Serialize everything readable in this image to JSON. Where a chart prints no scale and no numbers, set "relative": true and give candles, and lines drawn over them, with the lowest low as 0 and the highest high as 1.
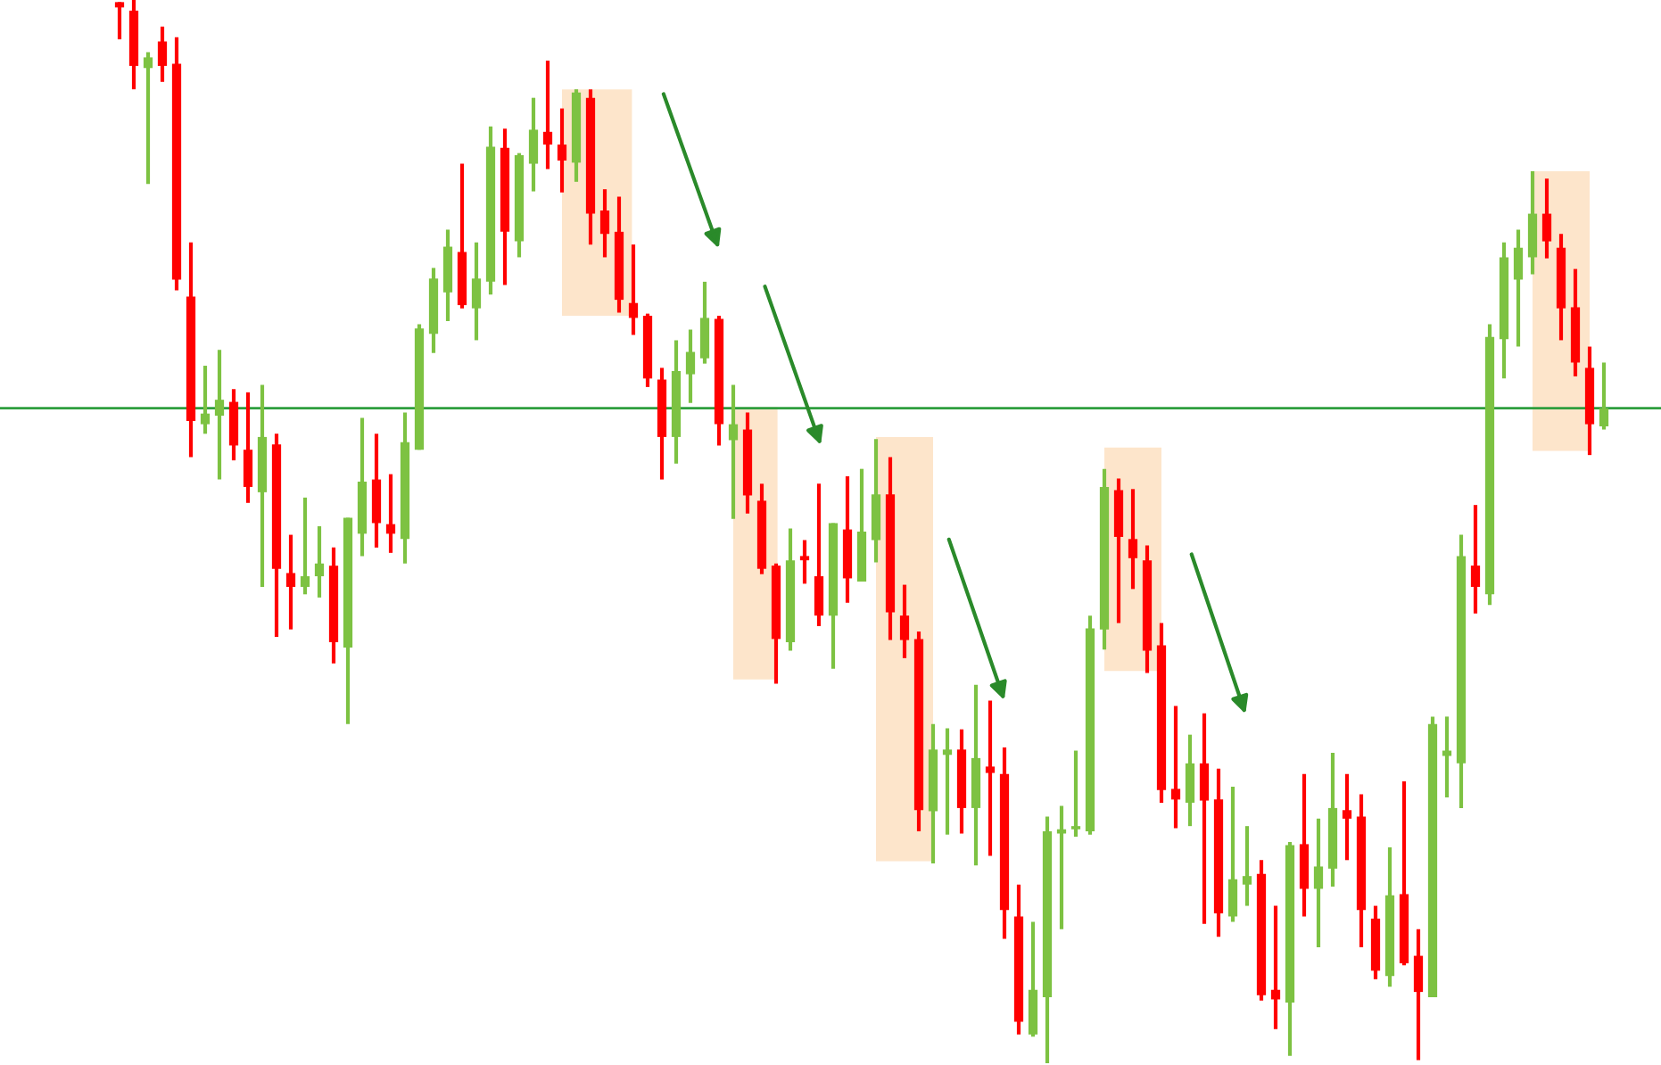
{
  "chart_data": {
    "type": "candlestick",
    "relative": true,
    "categories": [
      null,
      null,
      null,
      null,
      null,
      null,
      null,
      null,
      null,
      null,
      null,
      null,
      null,
      null,
      null,
      null,
      null,
      null,
      null,
      null,
      null,
      null,
      null,
      null,
      null,
      null,
      null,
      null,
      null,
      null,
      null,
      null,
      null,
      null,
      null,
      null,
      null,
      null,
      null,
      null,
      null,
      null,
      null,
      null,
      null,
      null,
      null,
      null,
      null,
      null,
      null,
      null,
      null,
      null,
      null,
      null,
      null,
      null,
      null,
      null,
      null,
      null,
      null,
      null,
      null,
      null,
      null,
      null,
      null,
      null,
      null,
      null,
      null,
      null,
      null,
      null,
      null,
      null,
      null,
      null,
      null,
      null,
      null,
      null,
      null,
      null,
      null,
      null,
      null,
      null,
      null,
      null,
      null,
      null,
      null,
      null,
      null,
      null,
      null,
      null,
      null,
      null,
      null,
      null,
      null
    ],
    "ohlc": [
      [
        0.998,
        0.998,
        0.963,
        0.993
      ],
      [
        0.99,
        1,
        0.916,
        0.938
      ],
      [
        0.936,
        0.951,
        0.827,
        0.946
      ],
      [
        0.961,
        0.975,
        0.923,
        0.938
      ],
      [
        0.94,
        0.965,
        0.727,
        0.737
      ],
      [
        0.721,
        0.772,
        0.57,
        0.604
      ],
      [
        0.601,
        0.656,
        0.592,
        0.611
      ],
      [
        0.609,
        0.671,
        0.549,
        0.624
      ],
      [
        0.622,
        0.634,
        0.567,
        0.581
      ],
      [
        0.577,
        0.631,
        0.527,
        0.542
      ],
      [
        0.537,
        0.638,
        0.448,
        0.589
      ],
      [
        0.582,
        0.592,
        0.401,
        0.465
      ],
      [
        0.461,
        0.497,
        0.408,
        0.448
      ],
      [
        0.448,
        0.532,
        0.441,
        0.458
      ],
      [
        0.458,
        0.505,
        0.438,
        0.47
      ],
      [
        0.468,
        0.485,
        0.376,
        0.396
      ],
      [
        0.391,
        0.513,
        0.319,
        0.513
      ],
      [
        0.498,
        0.607,
        0.477,
        0.547
      ],
      [
        0.549,
        0.592,
        0.485,
        0.508
      ],
      [
        0.507,
        0.554,
        0.48,
        0.498
      ],
      [
        0.493,
        0.612,
        0.47,
        0.584
      ],
      [
        0.577,
        0.695,
        0.577,
        0.691
      ],
      [
        0.686,
        0.748,
        0.668,
        0.738
      ],
      [
        0.725,
        0.784,
        0.698,
        0.768
      ],
      [
        0.763,
        0.846,
        0.71,
        0.713
      ],
      [
        0.71,
        0.772,
        0.68,
        0.738
      ],
      [
        0.735,
        0.881,
        0.723,
        0.862
      ],
      [
        0.861,
        0.879,
        0.732,
        0.782
      ],
      [
        0.773,
        0.856,
        0.758,
        0.854
      ],
      [
        0.846,
        0.908,
        0.82,
        0.878
      ],
      [
        0.876,
        0.943,
        0.841,
        0.864
      ],
      [
        0.864,
        0.898,
        0.819,
        0.849
      ],
      [
        0.847,
        0.916,
        0.829,
        0.913
      ],
      [
        0.908,
        0.916,
        0.77,
        0.799
      ],
      [
        0.802,
        0.822,
        0.758,
        0.78
      ],
      [
        0.782,
        0.815,
        0.706,
        0.718
      ],
      [
        0.715,
        0.77,
        0.685,
        0.701
      ],
      [
        0.703,
        0.705,
        0.636,
        0.644
      ],
      [
        0.643,
        0.654,
        0.549,
        0.589
      ],
      [
        0.589,
        0.68,
        0.564,
        0.651
      ],
      [
        0.648,
        0.69,
        0.621,
        0.669
      ],
      [
        0.663,
        0.735,
        0.658,
        0.701
      ],
      [
        0.7,
        0.703,
        0.581,
        0.601
      ],
      [
        0.586,
        0.638,
        0.512,
        0.601
      ],
      [
        0.596,
        0.612,
        0.517,
        0.534
      ],
      [
        0.529,
        0.545,
        0.46,
        0.465
      ],
      [
        0.468,
        0.47,
        0.357,
        0.399
      ],
      [
        0.396,
        0.503,
        0.388,
        0.473
      ],
      [
        0.477,
        0.492,
        0.451,
        0.473
      ],
      [
        0.458,
        0.545,
        0.411,
        0.421
      ],
      [
        0.421,
        0.508,
        0.371,
        0.508
      ],
      [
        0.502,
        0.552,
        0.433,
        0.456
      ],
      [
        0.453,
        0.559,
        0.453,
        0.5
      ],
      [
        0.492,
        0.587,
        0.471,
        0.535
      ],
      [
        0.535,
        0.57,
        0.398,
        0.424
      ],
      [
        0.421,
        0.45,
        0.381,
        0.398
      ],
      [
        0.399,
        0.406,
        0.218,
        0.238
      ],
      [
        0.237,
        0.319,
        0.188,
        0.295
      ],
      [
        0.29,
        0.315,
        0.215,
        0.295
      ],
      [
        0.295,
        0.314,
        0.216,
        0.24
      ],
      [
        0.24,
        0.356,
        0.186,
        0.287
      ],
      [
        0.279,
        0.341,
        0.195,
        0.273
      ],
      [
        0.272,
        0.297,
        0.117,
        0.144
      ],
      [
        0.138,
        0.168,
        0.027,
        0.039
      ],
      [
        0.027,
        0.133,
        0.025,
        0.069
      ],
      [
        0.062,
        0.232,
        0,
        0.218
      ],
      [
        0.216,
        0.242,
        0.126,
        0.22
      ],
      [
        0.22,
        0.294,
        0.213,
        0.223
      ],
      [
        0.218,
        0.421,
        0.215,
        0.409
      ],
      [
        0.408,
        0.559,
        0.389,
        0.542
      ],
      [
        0.539,
        0.55,
        0.414,
        0.495
      ],
      [
        0.493,
        0.54,
        0.446,
        0.475
      ],
      [
        0.473,
        0.487,
        0.367,
        0.388
      ],
      [
        0.393,
        0.414,
        0.245,
        0.257
      ],
      [
        0.258,
        0.336,
        0.221,
        0.248
      ],
      [
        0.245,
        0.309,
        0.223,
        0.282
      ],
      [
        0.282,
        0.329,
        0.131,
        0.247
      ],
      [
        0.248,
        0.277,
        0.119,
        0.141
      ],
      [
        0.138,
        0.26,
        0.133,
        0.173
      ],
      [
        0.168,
        0.223,
        0.148,
        0.176
      ],
      [
        0.178,
        0.191,
        0.059,
        0.064
      ],
      [
        0.069,
        0.148,
        0.032,
        0.06
      ],
      [
        0.057,
        0.208,
        0.007,
        0.205
      ],
      [
        0.206,
        0.272,
        0.138,
        0.164
      ],
      [
        0.164,
        0.23,
        0.109,
        0.185
      ],
      [
        0.183,
        0.292,
        0.166,
        0.24
      ],
      [
        0.238,
        0.272,
        0.191,
        0.23
      ],
      [
        0.232,
        0.253,
        0.109,
        0.144
      ],
      [
        0.136,
        0.148,
        0.079,
        0.087
      ],
      [
        0.082,
        0.203,
        0.072,
        0.158
      ],
      [
        0.159,
        0.265,
        0.092,
        0.094
      ],
      [
        0.101,
        0.126,
        0.003,
        0.067
      ],
      [
        0.062,
        0.326,
        0.062,
        0.319
      ],
      [
        0.289,
        0.326,
        0.25,
        0.294
      ],
      [
        0.282,
        0.497,
        0.24,
        0.477
      ],
      [
        0.468,
        0.525,
        0.423,
        0.448
      ],
      [
        0.441,
        0.695,
        0.431,
        0.683
      ],
      [
        0.681,
        0.772,
        0.644,
        0.758
      ],
      [
        0.737,
        0.784,
        0.674,
        0.767
      ],
      [
        0.758,
        0.839,
        0.742,
        0.799
      ],
      [
        0.799,
        0.832,
        0.757,
        0.773
      ],
      [
        0.767,
        0.78,
        0.68,
        0.71
      ],
      [
        0.711,
        0.747,
        0.646,
        0.659
      ],
      [
        0.654,
        0.674,
        0.572,
        0.601
      ],
      [
        0.599,
        0.659,
        0.596,
        0.616
      ]
    ],
    "colors": [
      "#ff0000",
      "#ff0000",
      "#7dc242",
      "#ff0000",
      "#ff0000",
      "#ff0000",
      "#7dc242",
      "#7dc242",
      "#ff0000",
      "#ff0000",
      "#7dc242",
      "#ff0000",
      "#ff0000",
      "#7dc242",
      "#7dc242",
      "#ff0000",
      "#7dc242",
      "#7dc242",
      "#ff0000",
      "#ff0000",
      "#7dc242",
      "#7dc242",
      "#7dc242",
      "#7dc242",
      "#ff0000",
      "#7dc242",
      "#7dc242",
      "#ff0000",
      "#7dc242",
      "#7dc242",
      "#ff0000",
      "#ff0000",
      "#7dc242",
      "#ff0000",
      "#ff0000",
      "#ff0000",
      "#ff0000",
      "#ff0000",
      "#ff0000",
      "#7dc242",
      "#7dc242",
      "#7dc242",
      "#ff0000",
      "#7dc242",
      "#ff0000",
      "#ff0000",
      "#ff0000",
      "#7dc242",
      "#ff0000",
      "#ff0000",
      "#7dc242",
      "#ff0000",
      "#7dc242",
      "#7dc242",
      "#ff0000",
      "#ff0000",
      "#ff0000",
      "#7dc242",
      "#7dc242",
      "#ff0000",
      "#7dc242",
      "#ff0000",
      "#ff0000",
      "#ff0000",
      "#7dc242",
      "#7dc242",
      "#7dc242",
      "#7dc242",
      "#7dc242",
      "#7dc242",
      "#ff0000",
      "#ff0000",
      "#ff0000",
      "#ff0000",
      "#ff0000",
      "#7dc242",
      "#ff0000",
      "#ff0000",
      "#7dc242",
      "#7dc242",
      "#ff0000",
      "#ff0000",
      "#7dc242",
      "#ff0000",
      "#7dc242",
      "#7dc242",
      "#ff0000",
      "#ff0000",
      "#ff0000",
      "#7dc242",
      "#ff0000",
      "#ff0000",
      "#7dc242",
      "#7dc242",
      "#7dc242",
      "#ff0000",
      "#7dc242",
      "#7dc242",
      "#7dc242",
      "#7dc242",
      "#ff0000",
      "#ff0000",
      "#ff0000",
      "#ff0000",
      "#7dc242"
    ],
    "ref_lines": [
      {
        "axis": "y",
        "value": 0.616,
        "color": "#2e9e3e"
      }
    ]
  }
}
